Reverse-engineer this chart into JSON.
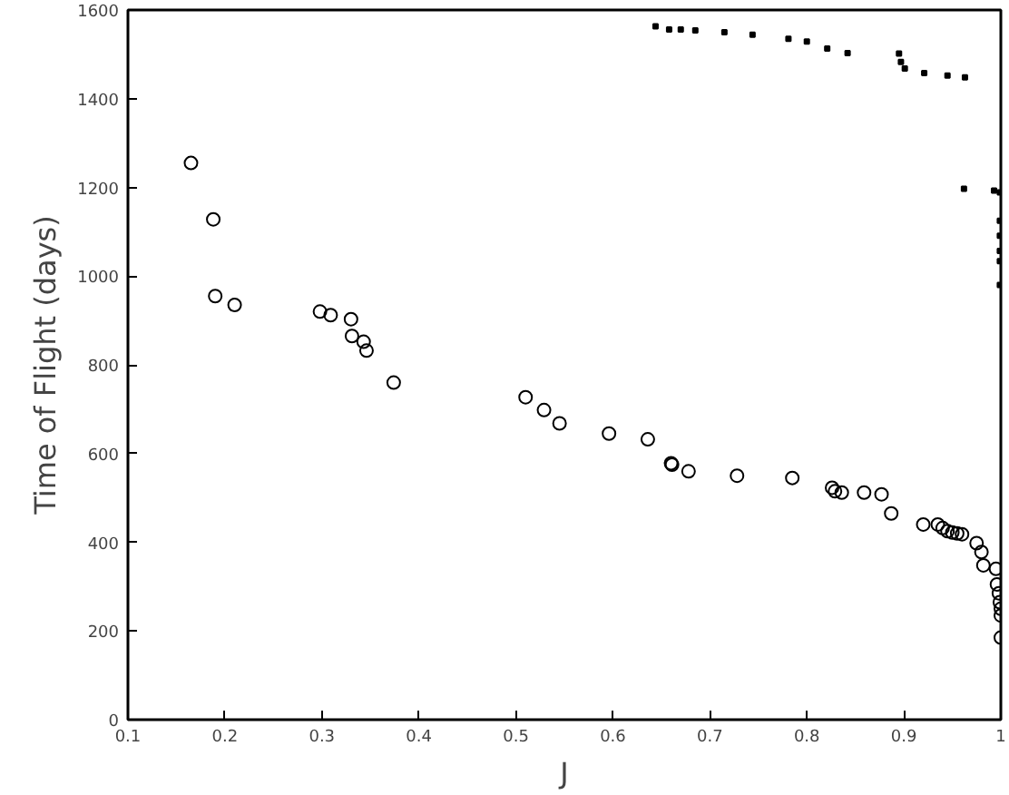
{
  "chart_data": {
    "type": "scatter",
    "xlabel": "J",
    "ylabel": "Time of Flight (days)",
    "xlim": [
      0.1,
      1
    ],
    "ylim": [
      0,
      1600
    ],
    "xticks": [
      0.1,
      0.2,
      0.3,
      0.4,
      0.5,
      0.6,
      0.7,
      0.8,
      0.9,
      {
        "value": 1,
        "label": "1"
      }
    ],
    "yticks": [
      0,
      200,
      400,
      600,
      800,
      1000,
      1200,
      1400,
      1600
    ],
    "series": [
      {
        "color": "#000000",
        "marker": "circle",
        "x": [
          0.165,
          0.188,
          0.19,
          0.21,
          0.298,
          0.309,
          0.33,
          0.331,
          0.343,
          0.346,
          0.374,
          0.51,
          0.529,
          0.545,
          0.596,
          0.636,
          0.66,
          0.661,
          0.678,
          0.728,
          0.785,
          0.826,
          0.829,
          0.836,
          0.859,
          0.877,
          0.887,
          0.92,
          0.935,
          0.94,
          0.945,
          0.95,
          0.955,
          0.96,
          0.975,
          0.98,
          0.982,
          0.995,
          0.996,
          0.998,
          0.999,
          1.0,
          1.0,
          1.0
        ],
        "values": [
          1255,
          1128,
          955,
          935,
          920,
          912,
          903,
          865,
          852,
          832,
          760,
          727,
          698,
          668,
          645,
          632,
          578,
          575,
          560,
          550,
          545,
          523,
          515,
          512,
          512,
          508,
          465,
          440,
          440,
          432,
          425,
          422,
          420,
          418,
          398,
          378,
          348,
          340,
          305,
          285,
          265,
          250,
          235,
          185
        ]
      },
      {
        "color": "#000000",
        "marker": "square",
        "x": [
          0.644,
          0.658,
          0.67,
          0.685,
          0.715,
          0.744,
          0.781,
          0.8,
          0.821,
          0.842,
          0.895,
          0.897,
          0.901,
          0.921,
          0.945,
          0.963,
          0.962,
          0.993,
          0.999,
          0.999,
          0.999,
          0.999,
          0.999,
          0.999
        ],
        "values": [
          1563,
          1556,
          1556,
          1554,
          1550,
          1544,
          1535,
          1529,
          1513,
          1503,
          1502,
          1483,
          1468,
          1458,
          1452,
          1448,
          1197,
          1193,
          1189,
          1125,
          1091,
          1057,
          1034,
          980
        ]
      }
    ]
  }
}
